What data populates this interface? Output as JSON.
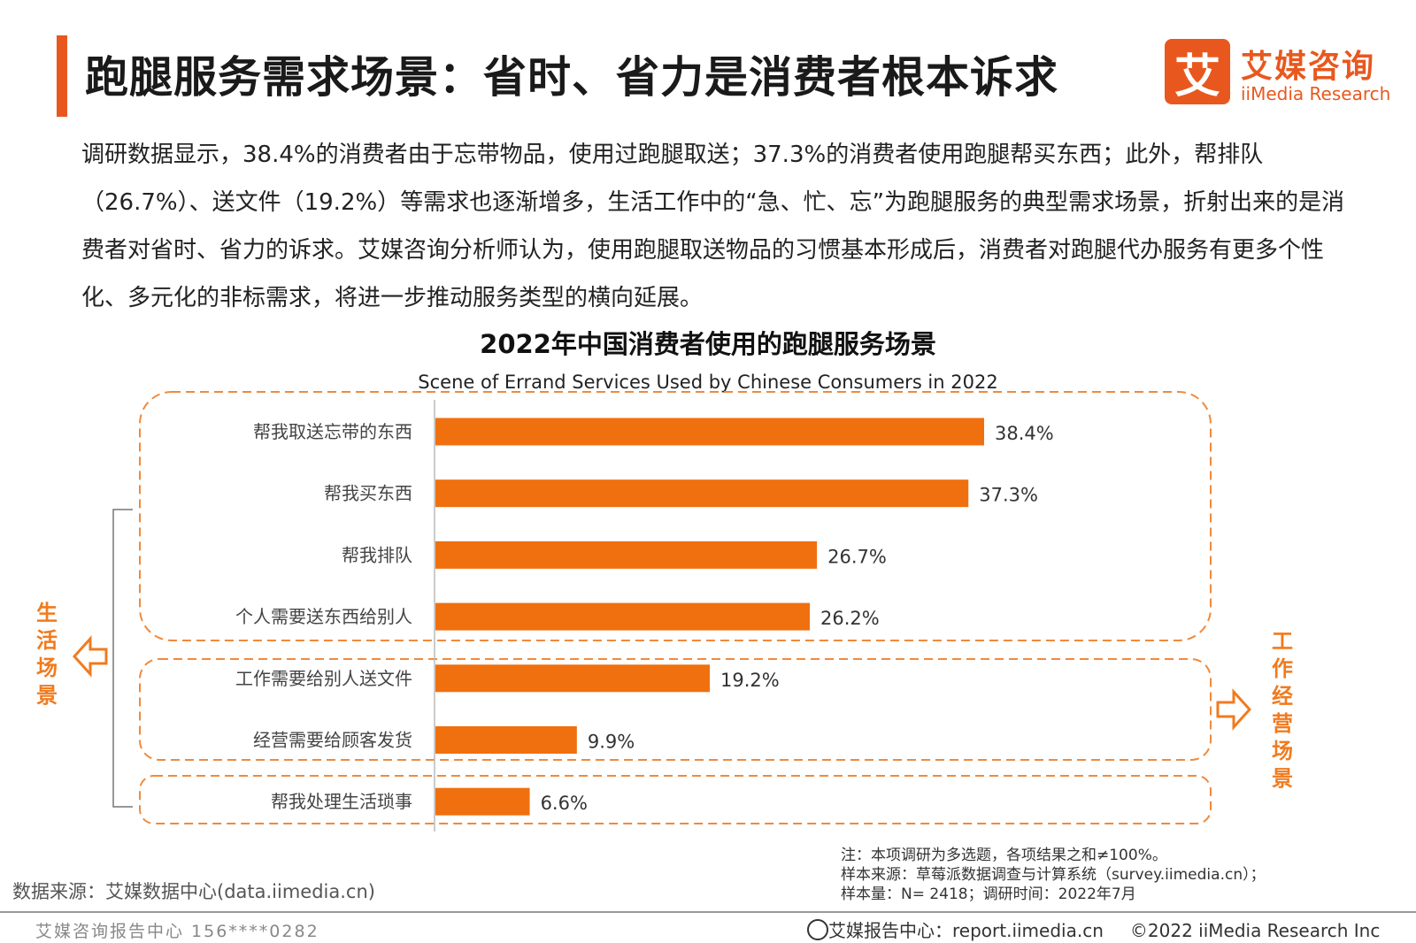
{
  "header": {
    "title": "跑腿服务需求场景：省时、省力是消费者根本诉求",
    "logo_cn": "艾媒咨询",
    "logo_en": "iiMedia Research",
    "logo_mark": "艾"
  },
  "intro_text": "调研数据显示，38.4%的消费者由于忘带物品，使用过跑腿取送；37.3%的消费者使用跑腿帮买东西；此外，帮排队（26.7%）、送文件（19.2%）等需求也逐渐增多，生活工作中的“急、忙、忘”为跑腿服务的典型需求场景，折射出来的是消费者对省时、省力的诉求。艾媒咨询分析师认为，使用跑腿取送物品的习惯基本形成后，消费者对跑腿代办服务有更多个性化、多元化的非标需求，将进一步推动服务类型的横向延展。",
  "chart_data": {
    "type": "bar",
    "orientation": "horizontal",
    "title": "2022年中国消费者使用的跑腿服务场景",
    "subtitle": "Scene of Errand Services Used by Chinese Consumers in 2022",
    "categories": [
      "帮我取送忘带的东西",
      "帮我买东西",
      "帮我排队",
      "个人需要送东西给别人",
      "工作需要给别人送文件",
      "经营需要给顾客发货",
      "帮我处理生活琐事"
    ],
    "values": [
      38.4,
      37.3,
      26.7,
      26.2,
      19.2,
      9.9,
      6.6
    ],
    "value_labels": [
      "38.4%",
      "37.3%",
      "26.7%",
      "26.2%",
      "19.2%",
      "9.9%",
      "6.6%"
    ],
    "unit": "%",
    "xlim": [
      0,
      60
    ],
    "bar_color": "#f0700f",
    "groups": [
      {
        "label": "生活场景",
        "arrow": "left"
      },
      {
        "label": "工作经营场景",
        "arrow": "right"
      }
    ]
  },
  "notes": [
    "注：本项调研为多选题，各项结果之和≠100%。",
    "样本来源：草莓派数据调查与计算系统（survey.iimedia.cn）；",
    "样本量：N= 2418；调研时间：2022年7月"
  ],
  "source": "数据来源：艾媒数据中心(data.iimedia.cn)",
  "footer": {
    "left": "艾媒咨询报告中心 156****0282",
    "report": "艾媒报告中心：report.iimedia.cn",
    "copyright": "©2022  iiMedia Research  Inc"
  },
  "colors": {
    "accent": "#e8581e",
    "bar": "#f0700f",
    "group_text": "#f07b1f"
  }
}
